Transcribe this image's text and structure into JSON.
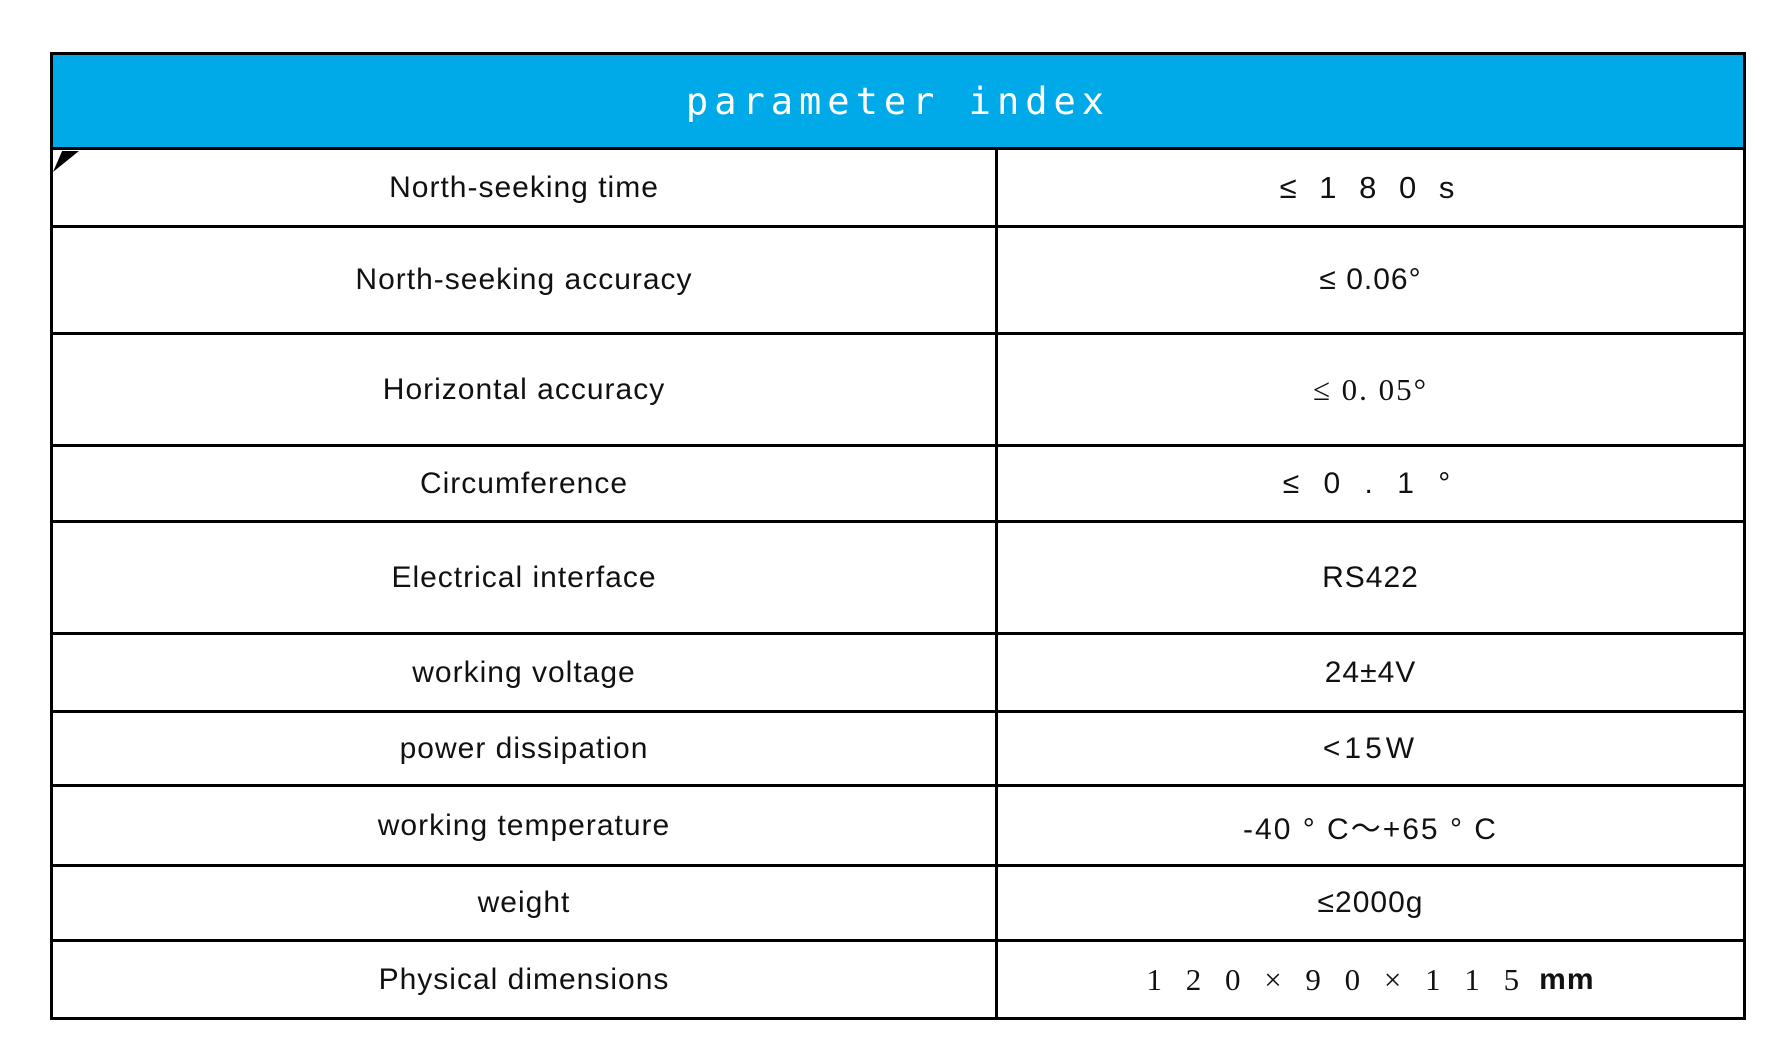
{
  "header": {
    "title": "parameter index"
  },
  "colors": {
    "header_bg": "#00A9E8",
    "header_text": "#FFFFFF",
    "border": "#000000"
  },
  "table": {
    "rows": [
      {
        "label": "North-seeking time",
        "value": "≤ 1 8 0 s",
        "unit": ""
      },
      {
        "label": "North-seeking accuracy",
        "value": "≤ 0.06°",
        "unit": ""
      },
      {
        "label": "Horizontal accuracy",
        "value": "≤ 0. 05°",
        "unit": ""
      },
      {
        "label": "Circumference",
        "value": "≤ 0 . 1 °",
        "unit": ""
      },
      {
        "label": "Electrical interface",
        "value": "RS422",
        "unit": ""
      },
      {
        "label": "working voltage",
        "value": "24±4V",
        "unit": ""
      },
      {
        "label": "power dissipation",
        "value": "<15W",
        "unit": ""
      },
      {
        "label": "working temperature",
        "value": "-40 ° C～+65 ° C",
        "unit": ""
      },
      {
        "label": "weight",
        "value": "≤2000g",
        "unit": ""
      },
      {
        "label": "Physical dimensions",
        "value": "1 2 0 × 9 0 × 1 1 5",
        "unit": "mm"
      }
    ]
  }
}
